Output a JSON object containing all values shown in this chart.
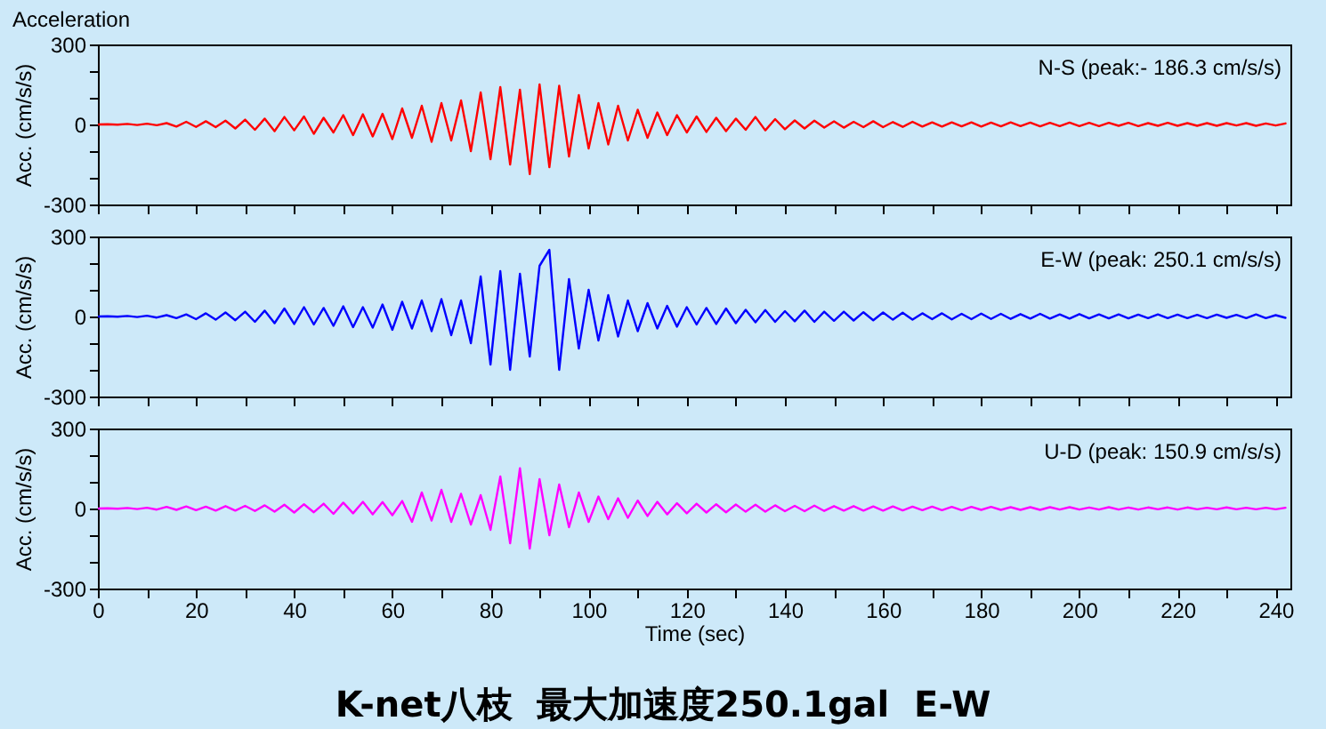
{
  "chart_data": [
    {
      "type": "line",
      "title": "Acceleration",
      "ylabel": "Acc. (cm/s/s)",
      "annotations": [
        "N-S (peak:- 186.3 cm/s/s)"
      ],
      "x": [
        0,
        2,
        4,
        6,
        8,
        10,
        12,
        14,
        16,
        18,
        20,
        22,
        24,
        26,
        28,
        30,
        32,
        34,
        36,
        38,
        40,
        42,
        44,
        46,
        48,
        50,
        52,
        54,
        56,
        58,
        60,
        62,
        64,
        66,
        68,
        70,
        72,
        74,
        76,
        78,
        80,
        82,
        84,
        86,
        88,
        90,
        92,
        94,
        96,
        98,
        100,
        102,
        104,
        106,
        108,
        110,
        112,
        114,
        116,
        118,
        120,
        122,
        124,
        126,
        128,
        130,
        132,
        134,
        136,
        138,
        140,
        142,
        144,
        146,
        148,
        150,
        152,
        154,
        156,
        158,
        160,
        162,
        164,
        166,
        168,
        170,
        172,
        174,
        176,
        178,
        180,
        182,
        184,
        186,
        188,
        190,
        192,
        194,
        196,
        198,
        200,
        202,
        204,
        206,
        208,
        210,
        212,
        214,
        216,
        218,
        220,
        222,
        224,
        226,
        228,
        230,
        232,
        234,
        236,
        238,
        240,
        242
      ],
      "series": [
        {
          "color": "#ff0000",
          "values": [
            0,
            1,
            -1,
            2,
            -2,
            3,
            -3,
            5,
            -8,
            10,
            -9,
            12,
            -10,
            14,
            -15,
            18,
            -20,
            22,
            -25,
            28,
            -22,
            30,
            -35,
            25,
            -30,
            35,
            -40,
            38,
            -45,
            40,
            -55,
            60,
            -50,
            70,
            -65,
            80,
            -60,
            90,
            -100,
            120,
            -130,
            140,
            -150,
            130,
            -186,
            150,
            -160,
            145,
            -120,
            110,
            -90,
            80,
            -75,
            70,
            -60,
            55,
            -50,
            45,
            -40,
            35,
            -30,
            30,
            -28,
            25,
            -25,
            22,
            -20,
            28,
            -22,
            20,
            -18,
            15,
            -15,
            14,
            -12,
            12,
            -12,
            10,
            -10,
            12,
            -10,
            9,
            -9,
            10,
            -8,
            8,
            -8,
            8,
            -7,
            8,
            -8,
            7,
            -7,
            8,
            -6,
            7,
            -7,
            6,
            -6,
            7,
            -6,
            6,
            -6,
            6,
            -5,
            6,
            -6,
            5,
            -5,
            6,
            -5,
            5,
            -5,
            5,
            -5,
            5,
            -4,
            5,
            -5,
            4,
            -4,
            4
          ]
        }
      ],
      "xlim": [
        0,
        243
      ],
      "ylim": [
        -300,
        300
      ],
      "xticks": [
        0,
        {
          "value": 10,
          "label": null
        },
        20,
        {
          "value": 30,
          "label": null
        },
        40,
        {
          "value": 50,
          "label": null
        },
        60,
        {
          "value": 70,
          "label": null
        },
        80,
        {
          "value": 90,
          "label": null
        },
        100,
        {
          "value": 110,
          "label": null
        },
        120,
        {
          "value": 130,
          "label": null
        },
        140,
        {
          "value": 150,
          "label": null
        },
        160,
        {
          "value": 170,
          "label": null
        },
        180,
        {
          "value": 190,
          "label": null
        },
        200,
        {
          "value": 210,
          "label": null
        },
        220,
        {
          "value": 230,
          "label": null
        },
        240
      ],
      "yticks": [
        -300,
        {
          "value": -200,
          "label": null
        },
        {
          "value": -100,
          "label": null
        },
        0,
        {
          "value": 100,
          "label": null
        },
        {
          "value": 200,
          "label": null
        },
        300
      ],
      "tick_labels": "y",
      "grid": false,
      "marker": "none",
      "line_style": "solid"
    },
    {
      "type": "line",
      "ylabel": "Acc. (cm/s/s)",
      "annotations": [
        "E-W (peak: 250.1 cm/s/s)"
      ],
      "x": [
        0,
        2,
        4,
        6,
        8,
        10,
        12,
        14,
        16,
        18,
        20,
        22,
        24,
        26,
        28,
        30,
        32,
        34,
        36,
        38,
        40,
        42,
        44,
        46,
        48,
        50,
        52,
        54,
        56,
        58,
        60,
        62,
        64,
        66,
        68,
        70,
        72,
        74,
        76,
        78,
        80,
        82,
        84,
        86,
        88,
        90,
        92,
        94,
        96,
        98,
        100,
        102,
        104,
        106,
        108,
        110,
        112,
        114,
        116,
        118,
        120,
        122,
        124,
        126,
        128,
        130,
        132,
        134,
        136,
        138,
        140,
        142,
        144,
        146,
        148,
        150,
        152,
        154,
        156,
        158,
        160,
        162,
        164,
        166,
        168,
        170,
        172,
        174,
        176,
        178,
        180,
        182,
        184,
        186,
        188,
        190,
        192,
        194,
        196,
        198,
        200,
        202,
        204,
        206,
        208,
        210,
        212,
        214,
        216,
        218,
        220,
        222,
        224,
        226,
        228,
        230,
        232,
        234,
        236,
        238,
        240,
        242
      ],
      "series": [
        {
          "color": "#0000ff",
          "values": [
            0,
            1,
            -1,
            2,
            -2,
            3,
            -4,
            5,
            -6,
            8,
            -10,
            12,
            -12,
            15,
            -14,
            18,
            -20,
            22,
            -25,
            30,
            -28,
            35,
            -30,
            32,
            -35,
            38,
            -40,
            35,
            -42,
            45,
            -50,
            55,
            -45,
            60,
            -55,
            65,
            -70,
            60,
            -100,
            150,
            -180,
            170,
            -200,
            160,
            -150,
            190,
            250,
            -200,
            140,
            -120,
            100,
            -90,
            80,
            -75,
            60,
            -55,
            50,
            -45,
            40,
            -38,
            35,
            -30,
            32,
            -28,
            30,
            -25,
            25,
            -22,
            24,
            -20,
            20,
            -18,
            22,
            -20,
            18,
            -16,
            18,
            -15,
            16,
            -14,
            15,
            -12,
            14,
            -12,
            12,
            -10,
            12,
            -11,
            10,
            -10,
            11,
            -9,
            10,
            -9,
            9,
            -8,
            10,
            -8,
            8,
            -8,
            9,
            -7,
            8,
            -7,
            8,
            -7,
            7,
            -6,
            8,
            -6,
            7,
            -6,
            6,
            -6,
            7,
            -5,
            6,
            -6,
            8,
            -6,
            5,
            -5
          ]
        }
      ],
      "xlim": [
        0,
        243
      ],
      "ylim": [
        -300,
        300
      ],
      "xticks": [
        0,
        {
          "value": 10,
          "label": null
        },
        20,
        {
          "value": 30,
          "label": null
        },
        40,
        {
          "value": 50,
          "label": null
        },
        60,
        {
          "value": 70,
          "label": null
        },
        80,
        {
          "value": 90,
          "label": null
        },
        100,
        {
          "value": 110,
          "label": null
        },
        120,
        {
          "value": 130,
          "label": null
        },
        140,
        {
          "value": 150,
          "label": null
        },
        160,
        {
          "value": 170,
          "label": null
        },
        180,
        {
          "value": 190,
          "label": null
        },
        200,
        {
          "value": 210,
          "label": null
        },
        220,
        {
          "value": 230,
          "label": null
        },
        240
      ],
      "yticks": [
        -300,
        {
          "value": -200,
          "label": null
        },
        {
          "value": -100,
          "label": null
        },
        0,
        {
          "value": 100,
          "label": null
        },
        {
          "value": 200,
          "label": null
        },
        300
      ],
      "tick_labels": "y",
      "grid": false,
      "marker": "none",
      "line_style": "solid"
    },
    {
      "type": "line",
      "xlabel": "Time (sec)",
      "ylabel": "Acc. (cm/s/s)",
      "annotations": [
        "U-D (peak: 150.9 cm/s/s)",
        "K-net八枝  最大加速度250.1gal  E-W"
      ],
      "x": [
        0,
        2,
        4,
        6,
        8,
        10,
        12,
        14,
        16,
        18,
        20,
        22,
        24,
        26,
        28,
        30,
        32,
        34,
        36,
        38,
        40,
        42,
        44,
        46,
        48,
        50,
        52,
        54,
        56,
        58,
        60,
        62,
        64,
        66,
        68,
        70,
        72,
        74,
        76,
        78,
        80,
        82,
        84,
        86,
        88,
        90,
        92,
        94,
        96,
        98,
        100,
        102,
        104,
        106,
        108,
        110,
        112,
        114,
        116,
        118,
        120,
        122,
        124,
        126,
        128,
        130,
        132,
        134,
        136,
        138,
        140,
        142,
        144,
        146,
        148,
        150,
        152,
        154,
        156,
        158,
        160,
        162,
        164,
        166,
        168,
        170,
        172,
        174,
        176,
        178,
        180,
        182,
        184,
        186,
        188,
        190,
        192,
        194,
        196,
        198,
        200,
        202,
        204,
        206,
        208,
        210,
        212,
        214,
        216,
        218,
        220,
        222,
        224,
        226,
        228,
        230,
        232,
        234,
        236,
        238,
        240,
        242
      ],
      "series": [
        {
          "color": "#ff00ff",
          "values": [
            0,
            1,
            -1,
            2,
            -2,
            3,
            -4,
            6,
            -5,
            8,
            -6,
            7,
            -8,
            9,
            -8,
            10,
            -9,
            12,
            -12,
            14,
            -15,
            16,
            -14,
            18,
            -20,
            22,
            -18,
            25,
            -22,
            24,
            -25,
            28,
            -50,
            60,
            -45,
            70,
            -50,
            55,
            -60,
            50,
            -80,
            120,
            -130,
            151,
            -150,
            110,
            -100,
            90,
            -70,
            60,
            -50,
            45,
            -40,
            38,
            -35,
            30,
            -28,
            25,
            -22,
            20,
            -18,
            18,
            -15,
            16,
            -14,
            15,
            -12,
            14,
            -12,
            12,
            -10,
            10,
            -10,
            11,
            -9,
            9,
            -8,
            9,
            -8,
            8,
            -8,
            8,
            -7,
            7,
            -6,
            7,
            -6,
            6,
            -6,
            6,
            -5,
            6,
            -5,
            5,
            -5,
            5,
            -5,
            5,
            -4,
            5,
            -4,
            4,
            -4,
            5,
            -4,
            4,
            -4,
            4,
            -3,
            4,
            -4,
            4,
            -3,
            3,
            -3,
            4,
            -3,
            3,
            -3,
            3,
            -3,
            3
          ]
        }
      ],
      "xlim": [
        0,
        243
      ],
      "ylim": [
        -300,
        300
      ],
      "xticks": [
        0,
        {
          "value": 10,
          "label": null
        },
        20,
        {
          "value": 30,
          "label": null
        },
        40,
        {
          "value": 50,
          "label": null
        },
        60,
        {
          "value": 70,
          "label": null
        },
        80,
        {
          "value": 90,
          "label": null
        },
        100,
        {
          "value": 110,
          "label": null
        },
        120,
        {
          "value": 130,
          "label": null
        },
        140,
        {
          "value": 150,
          "label": null
        },
        160,
        {
          "value": 170,
          "label": null
        },
        180,
        {
          "value": 190,
          "label": null
        },
        200,
        {
          "value": 210,
          "label": null
        },
        220,
        {
          "value": 230,
          "label": null
        },
        240
      ],
      "yticks": [
        -300,
        {
          "value": -200,
          "label": null
        },
        {
          "value": -100,
          "label": null
        },
        0,
        {
          "value": 100,
          "label": null
        },
        {
          "value": 200,
          "label": null
        },
        300
      ],
      "grid": false,
      "marker": "none",
      "line_style": "solid"
    }
  ]
}
